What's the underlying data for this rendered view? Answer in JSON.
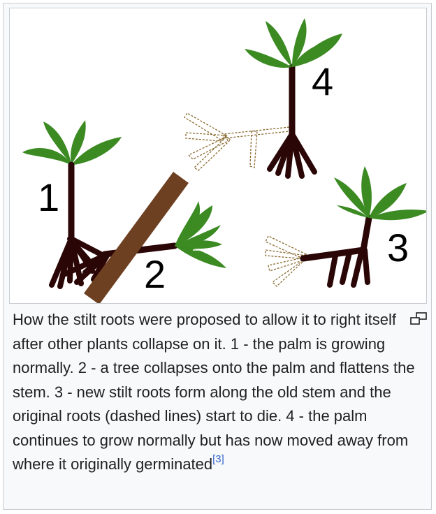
{
  "figure": {
    "stage_labels": [
      "1",
      "2",
      "3",
      "4"
    ],
    "colors": {
      "root_stem": "#2b0606",
      "leaf": "#3b8a22",
      "fallen_tree": "#6e4022",
      "dead_root_dashed": "#8a6a30",
      "frame_border": "#c8ccd1",
      "caption_text": "#202122",
      "link": "#3366cc"
    }
  },
  "caption": {
    "text": "How the stilt roots were proposed to allow it to right itself after other plants collapse on it. 1 - the palm is growing normally. 2 - a tree collapses onto the palm and flattens the stem. 3 - new stilt roots form along the old stem and the original roots (dashed lines) start to die. 4 - the palm continues to grow normally but has now moved away from where it originally germinated",
    "reference": "[3]"
  },
  "magnify_icon": "enlarge-icon"
}
